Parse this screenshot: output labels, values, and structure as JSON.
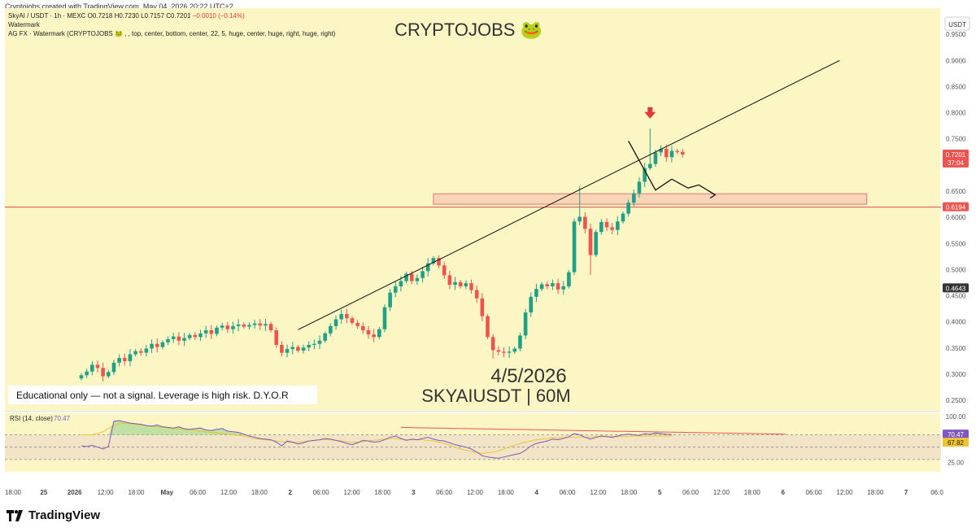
{
  "header": {
    "attribution": "Cryptojobs created with TradingView.com, May 04, 2026 20:22 UTC+2"
  },
  "legend": {
    "symbol": "SkyAI / USDT · 1h · MEXC",
    "open": "O0.7218",
    "high": "H0.7230",
    "low": "L0.7157",
    "close": "C0.7201",
    "change": "−0.0010 (−0.14%)",
    "line2": "Watermark",
    "line3": "AG FX · Watermark (CRYPTOJOBS 🐸 , , top, center, bottom, center, 22, 5, huge, center, huge, right, huge, right)"
  },
  "watermark": "CRYPTOJOBS 🐸",
  "overlay": {
    "date": "4/5/2026",
    "pair": "SKYAIUSDT | 60M",
    "disclaimer": "Educational only — not a signal. Leverage is high risk. D.Y.O.R"
  },
  "colors": {
    "background": "#fbf6c4",
    "up": "#1fa188",
    "down": "#ef5350",
    "rsi": "#7e57c2",
    "rsi_ma": "#f0c330",
    "support_line": "#e04a4a",
    "zone_fill": "#f9d5b8",
    "zone_border": "#e57373"
  },
  "chart_data": {
    "type": "candlestick",
    "symbol": "SkyAI / USDT",
    "interval": "1h",
    "exchange": "MEXC",
    "currency_label": "USDT",
    "ylim": [
      0.23,
      1.0
    ],
    "y_ticks": [
      "0.9500",
      "0.9000",
      "0.8500",
      "0.8000",
      "0.7500",
      "0.6500",
      "0.6000",
      "0.5500",
      "0.5000",
      "0.4500",
      "0.4000",
      "0.3500",
      "0.3000",
      "0.2500"
    ],
    "price_labels": [
      {
        "label": "0.7201",
        "sublabel": "37:04",
        "value": 0.7201,
        "color": "#ef5350"
      },
      {
        "label": "0.6194",
        "value": 0.6194,
        "color": "#ef5350"
      },
      {
        "label": "0.4643",
        "value": 0.4643,
        "color": "#333333"
      }
    ],
    "x_ticks": [
      "18:00",
      "25",
      "2026",
      "12:00",
      "18:00",
      "May",
      "06:00",
      "12:00",
      "18:00",
      "2",
      "06:00",
      "12:00",
      "18:00",
      "3",
      "06:00",
      "12:00",
      "18:00",
      "4",
      "06:00",
      "12:00",
      "18:00",
      "5",
      "06:00",
      "12:00",
      "18:00",
      "6",
      "06:00",
      "12:00",
      "18:00",
      "7",
      "06:0"
    ],
    "ohlc_close": [
      0.298,
      0.305,
      0.318,
      0.312,
      0.296,
      0.304,
      0.322,
      0.331,
      0.325,
      0.338,
      0.344,
      0.341,
      0.349,
      0.358,
      0.352,
      0.361,
      0.367,
      0.372,
      0.364,
      0.369,
      0.375,
      0.371,
      0.378,
      0.384,
      0.377,
      0.389,
      0.393,
      0.386,
      0.392,
      0.395,
      0.391,
      0.394,
      0.397,
      0.393,
      0.396,
      0.384,
      0.356,
      0.341,
      0.348,
      0.352,
      0.345,
      0.351,
      0.356,
      0.358,
      0.364,
      0.378,
      0.392,
      0.405,
      0.415,
      0.407,
      0.398,
      0.392,
      0.384,
      0.376,
      0.371,
      0.386,
      0.428,
      0.456,
      0.468,
      0.478,
      0.492,
      0.478,
      0.484,
      0.497,
      0.512,
      0.522,
      0.508,
      0.489,
      0.471,
      0.476,
      0.468,
      0.474,
      0.461,
      0.445,
      0.411,
      0.371,
      0.346,
      0.343,
      0.341,
      0.343,
      0.349,
      0.374,
      0.418,
      0.448,
      0.463,
      0.472,
      0.468,
      0.474,
      0.462,
      0.468,
      0.495,
      0.592,
      0.601,
      0.578,
      0.528,
      0.572,
      0.591,
      0.581,
      0.576,
      0.592,
      0.607,
      0.628,
      0.646,
      0.668,
      0.694,
      0.702,
      0.724,
      0.731,
      0.715,
      0.727,
      0.725,
      0.7201
    ],
    "overlays": {
      "trendline": {
        "from": {
          "candle": 40,
          "price": 0.385
        },
        "to": {
          "candle": 140,
          "price": 0.9
        }
      },
      "horizontal_line": 0.6194,
      "zone": {
        "from_candle": 65,
        "to_candle": 145,
        "low": 0.625,
        "high": 0.645
      },
      "projection_path": [
        [
          101,
          0.746
        ],
        [
          106,
          0.652
        ],
        [
          109,
          0.673
        ],
        [
          112,
          0.656
        ],
        [
          114,
          0.662
        ],
        [
          117,
          0.643
        ]
      ]
    },
    "rsi": {
      "label": "RSI (14, close)",
      "value": "70.47",
      "ma_value": "67.82",
      "levels": [
        "100.00",
        "70.47",
        "67.82",
        "25.00"
      ],
      "ylim": [
        10,
        105
      ],
      "bands": [
        70,
        50,
        30
      ],
      "series": [
        52,
        51,
        53,
        50,
        47,
        51,
        92,
        93,
        91,
        89,
        88,
        87,
        85,
        84,
        86,
        83,
        82,
        81,
        83,
        80,
        79,
        80,
        81,
        78,
        77,
        79,
        80,
        76,
        75,
        74,
        71,
        68,
        66,
        64,
        63,
        62,
        58,
        52,
        60,
        58,
        55,
        57,
        60,
        61,
        62,
        64,
        63,
        61,
        59,
        56,
        54,
        57,
        61,
        60,
        58,
        59,
        62,
        66,
        68,
        64,
        61,
        63,
        62,
        64,
        66,
        63,
        61,
        60,
        57,
        54,
        52,
        50,
        47,
        42,
        36,
        34,
        33,
        32,
        34,
        36,
        38,
        40,
        45,
        52,
        56,
        58,
        60,
        63,
        62,
        64,
        67,
        72,
        70,
        66,
        63,
        66,
        68,
        67,
        66,
        68,
        70,
        71,
        70,
        69,
        72,
        71,
        73,
        72,
        71,
        70.47
      ],
      "ma_series": [
        70,
        70,
        70,
        72,
        75,
        80,
        86,
        88,
        89,
        88,
        87,
        86,
        85,
        84,
        83,
        82,
        81,
        80,
        80,
        79,
        78,
        77,
        76,
        75,
        74,
        73,
        72,
        71,
        70,
        69,
        68,
        66,
        64,
        63,
        62,
        61,
        60,
        59,
        58,
        58,
        58,
        59,
        60,
        61,
        62,
        62,
        62,
        61,
        60,
        59,
        58,
        58,
        59,
        60,
        61,
        62,
        63,
        64,
        64,
        63,
        62,
        62,
        62,
        62,
        61,
        60,
        58,
        56,
        53,
        50,
        47,
        45,
        43,
        41,
        40,
        41,
        42,
        44,
        47,
        50,
        53,
        56,
        58,
        60,
        62,
        63,
        64,
        65,
        65,
        66,
        66,
        66,
        66,
        66,
        66,
        67,
        67,
        67,
        67,
        67,
        67,
        67,
        68,
        68,
        68,
        68,
        68,
        68,
        68,
        67.82
      ],
      "divergence_line": {
        "from": {
          "candle": 59,
          "value": 82
        },
        "to": {
          "candle": 130,
          "value": 71
        }
      }
    }
  },
  "brand": {
    "name": "TradingView"
  }
}
